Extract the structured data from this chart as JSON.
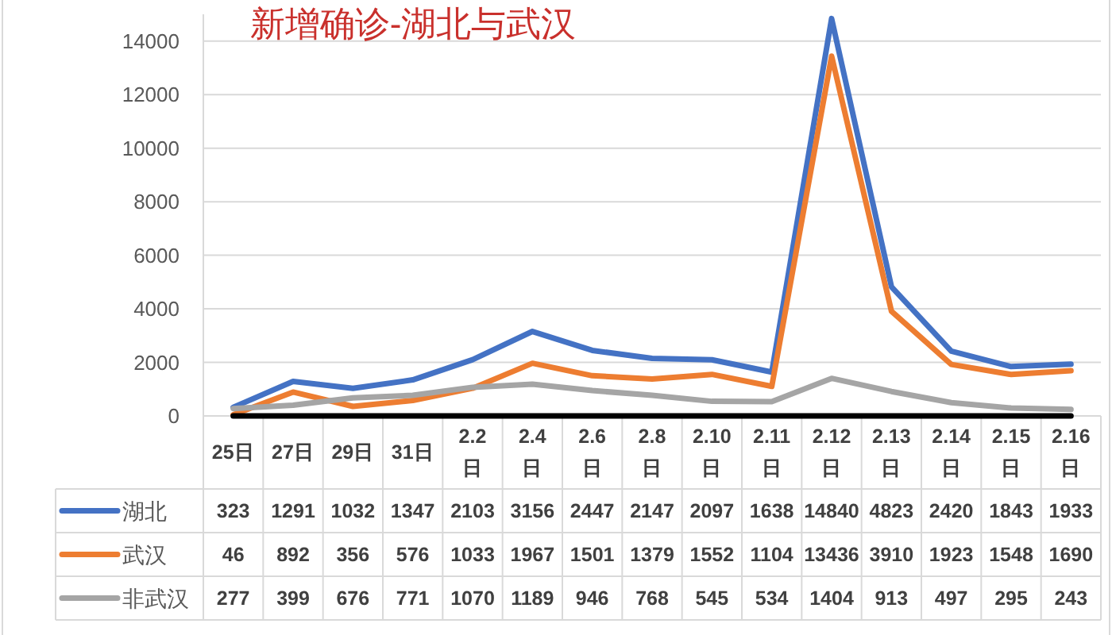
{
  "chart_data": {
    "type": "line",
    "title": "新增确诊-湖北与武汉",
    "categories": [
      "25日",
      "27日",
      "29日",
      "31日",
      "2.2日",
      "2.4日",
      "2.6日",
      "2.8日",
      "2.10日",
      "2.11日",
      "2.12日",
      "2.13日",
      "2.14日",
      "2.15日",
      "2.16日"
    ],
    "series": [
      {
        "name": "湖北",
        "color": "#4472c4",
        "values": [
          323,
          1291,
          1032,
          1347,
          2103,
          3156,
          2447,
          2147,
          2097,
          1638,
          14840,
          4823,
          2420,
          1843,
          1933
        ],
        "value_labels": [
          "323",
          "1291",
          "1032",
          "1347",
          "2103",
          "3156",
          "2447",
          "2147",
          "2097",
          "1638",
          "14840",
          "4823",
          "2420",
          "1843",
          "1933"
        ]
      },
      {
        "name": "武汉",
        "color": "#ed7d31",
        "values": [
          46,
          892,
          356,
          576,
          1033,
          1967,
          1501,
          1379,
          1552,
          1104,
          13436,
          3910,
          1923,
          1548,
          1690
        ],
        "value_labels": [
          "46",
          "892",
          "356",
          "576",
          "1033",
          "1967",
          "1501",
          "1379",
          "1552",
          "1104",
          "13436",
          "3910",
          "1923",
          "1548",
          "1690"
        ]
      },
      {
        "name": "非武汉",
        "color": "#a5a5a5",
        "values": [
          277,
          399,
          676,
          771,
          1070,
          1189,
          946,
          768,
          545,
          534,
          1404,
          913,
          497,
          295,
          243
        ],
        "value_labels": [
          "277",
          "399",
          "676",
          "771",
          "1070",
          "1189",
          "946",
          "768",
          "545",
          "534",
          "1404",
          "913",
          "497",
          "295",
          "243"
        ]
      },
      {
        "color": "#000000",
        "values": [
          0,
          0,
          0,
          0,
          0,
          0,
          0,
          0,
          0,
          0,
          0,
          0,
          0,
          0,
          0
        ]
      }
    ],
    "ylim": [
      0,
      15000
    ],
    "yticks": [
      0,
      2000,
      4000,
      6000,
      8000,
      10000,
      12000,
      14000
    ],
    "grid": "y",
    "legend": "bottom left"
  }
}
